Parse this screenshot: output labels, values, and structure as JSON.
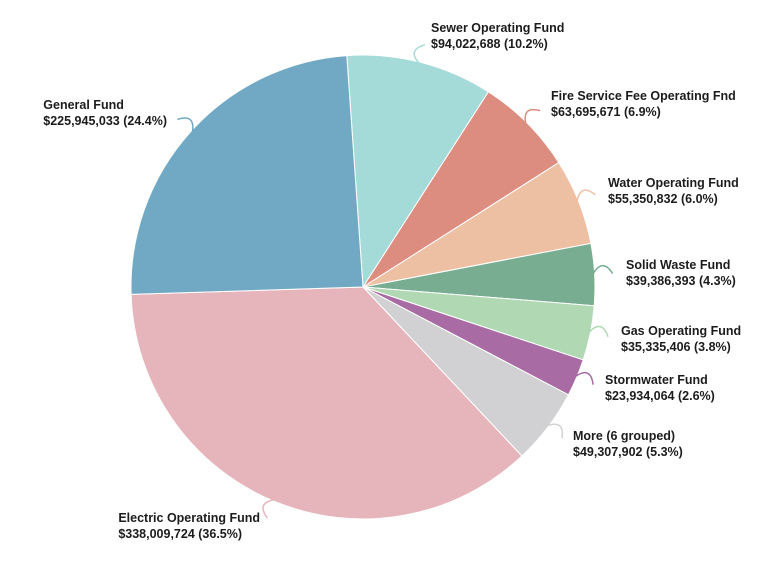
{
  "chart_data": {
    "type": "pie",
    "title": "",
    "legend": "none",
    "background": "#ffffff",
    "text_color": "#1c1c1c",
    "start_angle_deg": -4,
    "slices": [
      {
        "label": "Sewer Operating Fund",
        "amount": 94022688,
        "amount_text": "$94,022,688",
        "percent": 10.2,
        "color": "#a4dbd9"
      },
      {
        "label": "Fire Service Fee Operating Fnd",
        "amount": 63695671,
        "amount_text": "$63,695,671",
        "percent": 6.9,
        "color": "#dd8d80"
      },
      {
        "label": "Water Operating Fund",
        "amount": 55350832,
        "amount_text": "$55,350,832",
        "percent": 6.0,
        "color": "#edc0a4"
      },
      {
        "label": "Solid Waste Fund",
        "amount": 39386393,
        "amount_text": "$39,386,393",
        "percent": 4.3,
        "color": "#78ad92"
      },
      {
        "label": "Gas Operating Fund",
        "amount": 35335406,
        "amount_text": "$35,335,406",
        "percent": 3.8,
        "color": "#b0d9b3"
      },
      {
        "label": "Stormwater Fund",
        "amount": 23934064,
        "amount_text": "$23,934,064",
        "percent": 2.6,
        "color": "#a86ba3"
      },
      {
        "label": "More (6 grouped)",
        "amount": 49307902,
        "amount_text": "$49,307,902",
        "percent": 5.3,
        "color": "#d1d0d2"
      },
      {
        "label": "Electric Operating Fund",
        "amount": 338009724,
        "amount_text": "$338,009,724",
        "percent": 36.5,
        "color": "#e6b5bc"
      },
      {
        "label": "General Fund",
        "amount": 225945033,
        "amount_text": "$225,945,033",
        "percent": 24.4,
        "color": "#71a9c5"
      }
    ]
  }
}
